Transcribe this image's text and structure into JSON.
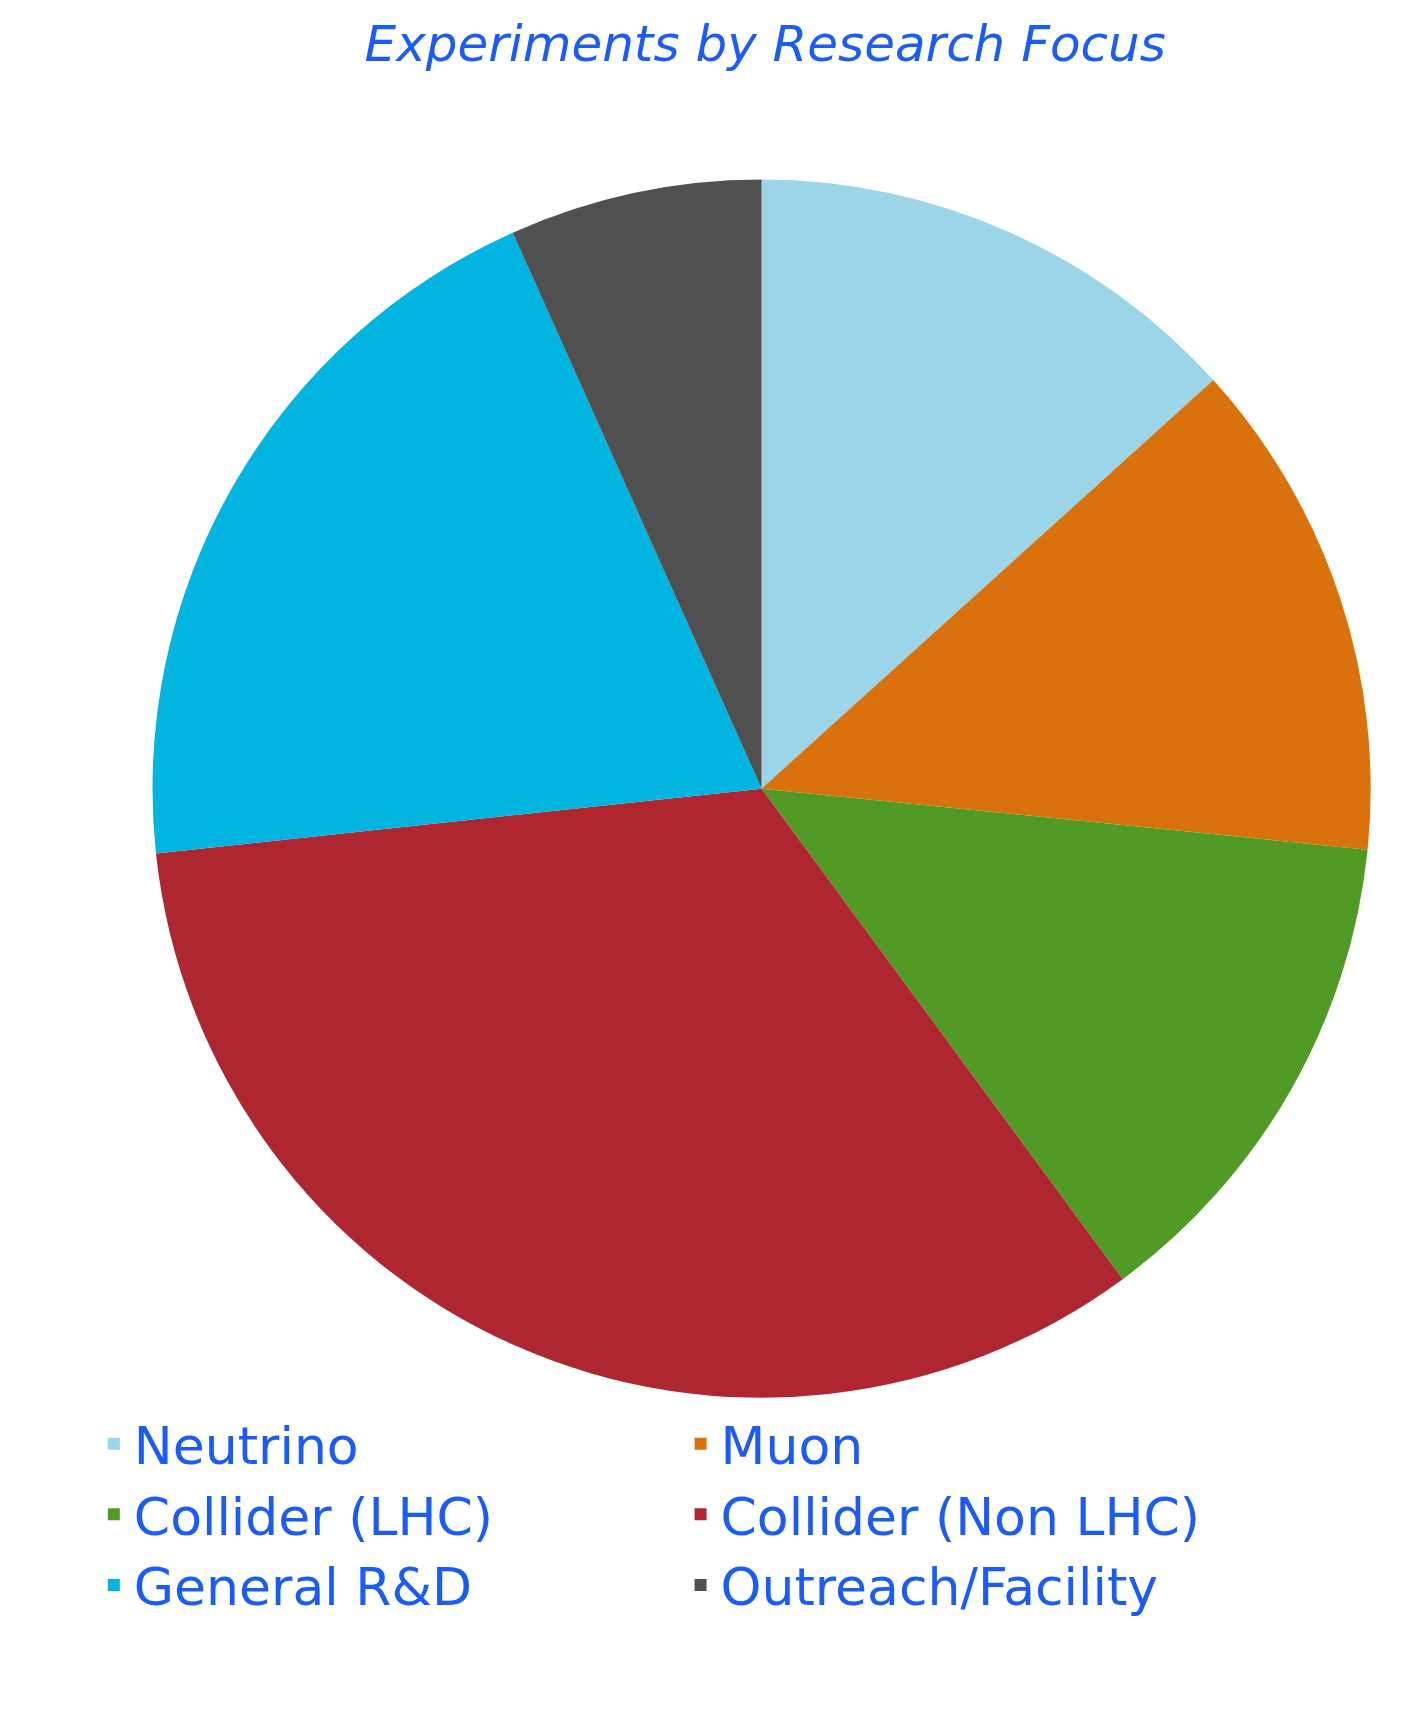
{
  "chart_data": {
    "type": "pie",
    "title": "Experiments by Research Focus",
    "categories": [
      "Neutrino",
      "Muon",
      "Collider (LHC)",
      "Collider (Non LHC)",
      "General R&D",
      "Outreach/Facility"
    ],
    "values": [
      13.3,
      13.3,
      13.3,
      33.4,
      20,
      6.7
    ],
    "colors": [
      "#9dd5e8",
      "#d9720d",
      "#529a26",
      "#ae2630",
      "#02b5e1",
      "#505050"
    ],
    "legend": "bottom"
  }
}
